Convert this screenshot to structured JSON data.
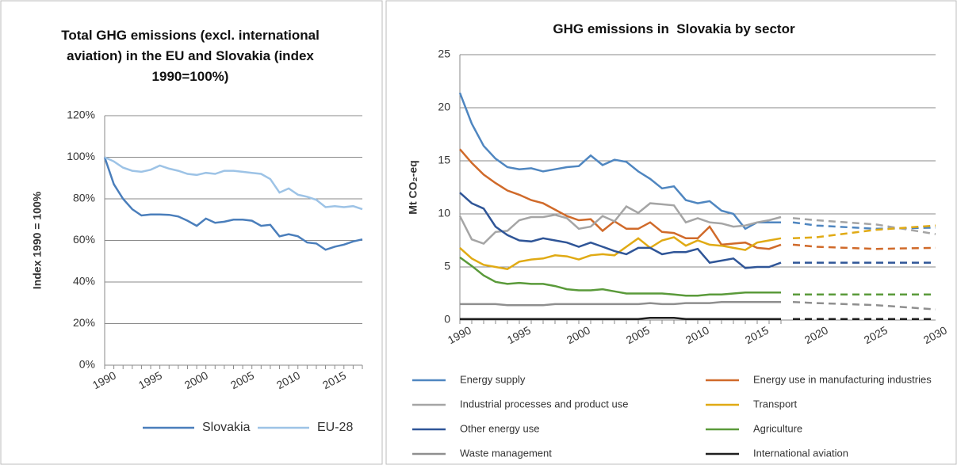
{
  "chart_data": [
    {
      "type": "line",
      "title": "Total GHG emissions (excl. international aviation) in the EU and Slovakia (index 1990=100%)",
      "y_label": "Index 1990 = 100%",
      "x": [
        1990,
        1991,
        1992,
        1993,
        1994,
        1995,
        1996,
        1997,
        1998,
        1999,
        2000,
        2001,
        2002,
        2003,
        2004,
        2005,
        2006,
        2007,
        2008,
        2009,
        2010,
        2011,
        2012,
        2013,
        2014,
        2015,
        2016,
        2017,
        2018
      ],
      "xlim": [
        1990,
        2018
      ],
      "xticks": [
        1990,
        1995,
        2000,
        2005,
        2010,
        2015
      ],
      "ylim": [
        0,
        120
      ],
      "yticks": [
        {
          "value": 0,
          "label": "0%"
        },
        {
          "value": 20,
          "label": "20%"
        },
        {
          "value": 40,
          "label": "40%"
        },
        {
          "value": 60,
          "label": "60%"
        },
        {
          "value": 80,
          "label": "80%"
        },
        {
          "value": 100,
          "label": "100%"
        },
        {
          "value": 120,
          "label": "120%"
        }
      ],
      "grid": true,
      "legend": "bottom",
      "series": [
        {
          "name": "Slovakia",
          "color": "#4a7ebb",
          "values": [
            100,
            87,
            80,
            75,
            72,
            72.5,
            72.5,
            72.3,
            71.5,
            69.5,
            67,
            70.5,
            68.5,
            69,
            70,
            70,
            69.5,
            67,
            67.5,
            62,
            63,
            62,
            59,
            58.5,
            55.5,
            57,
            58,
            59.5,
            60.5
          ]
        },
        {
          "name": "EU-28",
          "color": "#9dc3e6",
          "values": [
            100,
            98,
            95,
            93.5,
            93,
            94,
            96,
            94.5,
            93.5,
            92,
            91.5,
            92.5,
            92,
            93.5,
            93.5,
            93,
            92.5,
            92,
            89.5,
            83,
            85,
            82,
            81,
            79.5,
            76,
            76.5,
            76,
            76.5,
            75
          ]
        }
      ]
    },
    {
      "type": "line",
      "title": "GHG emissions in  Slovakia by sector",
      "y_label": "Mt CO₂-eq",
      "x": [
        1990,
        1991,
        1992,
        1993,
        1994,
        1995,
        1996,
        1997,
        1998,
        1999,
        2000,
        2001,
        2002,
        2003,
        2004,
        2005,
        2006,
        2007,
        2008,
        2009,
        2010,
        2011,
        2012,
        2013,
        2014,
        2015,
        2016,
        2017
      ],
      "projection_x": [
        2018,
        2020,
        2025,
        2030
      ],
      "xlim": [
        1990,
        2030
      ],
      "xticks": [
        1990,
        1995,
        2000,
        2005,
        2010,
        2015,
        2020,
        2025,
        2030
      ],
      "ylim": [
        0,
        25
      ],
      "yticks": [
        0,
        5,
        10,
        15,
        20,
        25
      ],
      "grid": true,
      "legend": "bottom",
      "series": [
        {
          "name": "Energy supply",
          "color": "#4f86c0",
          "values": [
            21.4,
            18.5,
            16.4,
            15.2,
            14.4,
            14.2,
            14.3,
            14.0,
            14.2,
            14.4,
            14.5,
            15.5,
            14.6,
            15.1,
            14.9,
            14.0,
            13.3,
            12.4,
            12.6,
            11.3,
            11.0,
            11.2,
            10.3,
            10.0,
            8.6,
            9.2,
            9.2,
            9.2
          ],
          "projection_values": [
            9.2,
            8.9,
            8.6,
            8.7
          ]
        },
        {
          "name": "Energy use in manufacturing industries",
          "color": "#d06a2a",
          "values": [
            16.1,
            14.8,
            13.7,
            12.9,
            12.2,
            11.8,
            11.3,
            11.0,
            10.4,
            9.8,
            9.4,
            9.5,
            8.4,
            9.3,
            8.6,
            8.6,
            9.2,
            8.3,
            8.2,
            7.7,
            7.7,
            8.8,
            7.1,
            7.2,
            7.3,
            6.8,
            6.7,
            7.1
          ],
          "projection_values": [
            7.1,
            6.9,
            6.7,
            6.8
          ]
        },
        {
          "name": "Industrial processes and product use",
          "color": "#a5a5a5",
          "values": [
            9.8,
            7.6,
            7.2,
            8.3,
            8.4,
            9.4,
            9.7,
            9.7,
            9.9,
            9.6,
            8.6,
            8.8,
            9.8,
            9.3,
            10.7,
            10.1,
            11.0,
            10.9,
            10.8,
            9.2,
            9.6,
            9.2,
            9.1,
            8.8,
            8.9,
            9.2,
            9.4,
            9.7
          ],
          "projection_values": [
            9.6,
            9.4,
            9.0,
            8.1
          ]
        },
        {
          "name": "Transport",
          "color": "#e0aa14",
          "values": [
            6.8,
            5.8,
            5.2,
            5.0,
            4.8,
            5.5,
            5.7,
            5.8,
            6.1,
            6.0,
            5.7,
            6.1,
            6.2,
            6.1,
            6.9,
            7.7,
            6.8,
            7.5,
            7.8,
            7.0,
            7.5,
            7.1,
            7.0,
            6.8,
            6.6,
            7.3,
            7.5,
            7.7
          ],
          "projection_values": [
            7.7,
            7.8,
            8.5,
            8.9
          ]
        },
        {
          "name": "Other energy use",
          "color": "#2f5597",
          "values": [
            12.0,
            11.0,
            10.5,
            8.8,
            8.0,
            7.5,
            7.4,
            7.7,
            7.5,
            7.3,
            6.9,
            7.3,
            6.9,
            6.5,
            6.2,
            6.8,
            6.8,
            6.2,
            6.4,
            6.4,
            6.7,
            5.4,
            5.6,
            5.8,
            4.9,
            5.0,
            5.0,
            5.4
          ],
          "projection_values": [
            5.4,
            5.4,
            5.4,
            5.4
          ]
        },
        {
          "name": "Agriculture",
          "color": "#5a9a3a",
          "values": [
            5.9,
            5.1,
            4.2,
            3.6,
            3.4,
            3.5,
            3.4,
            3.4,
            3.2,
            2.9,
            2.8,
            2.8,
            2.9,
            2.7,
            2.5,
            2.5,
            2.5,
            2.5,
            2.4,
            2.3,
            2.3,
            2.4,
            2.4,
            2.5,
            2.6,
            2.6,
            2.6,
            2.6
          ],
          "projection_values": [
            2.4,
            2.4,
            2.4,
            2.4
          ]
        },
        {
          "name": "Waste management",
          "color": "#8f8f8f",
          "values": [
            1.5,
            1.5,
            1.5,
            1.5,
            1.4,
            1.4,
            1.4,
            1.4,
            1.5,
            1.5,
            1.5,
            1.5,
            1.5,
            1.5,
            1.5,
            1.5,
            1.6,
            1.5,
            1.5,
            1.6,
            1.6,
            1.6,
            1.7,
            1.7,
            1.7,
            1.7,
            1.7,
            1.7
          ],
          "projection_values": [
            1.7,
            1.6,
            1.4,
            1.0
          ]
        },
        {
          "name": "International aviation",
          "color": "#1f1f1f",
          "values": [
            0.1,
            0.1,
            0.1,
            0.1,
            0.1,
            0.1,
            0.1,
            0.1,
            0.1,
            0.1,
            0.1,
            0.1,
            0.1,
            0.1,
            0.1,
            0.1,
            0.2,
            0.2,
            0.2,
            0.1,
            0.1,
            0.1,
            0.1,
            0.1,
            0.1,
            0.1,
            0.1,
            0.1
          ],
          "projection_values": [
            0.1,
            0.1,
            0.1,
            0.1
          ]
        }
      ]
    }
  ]
}
